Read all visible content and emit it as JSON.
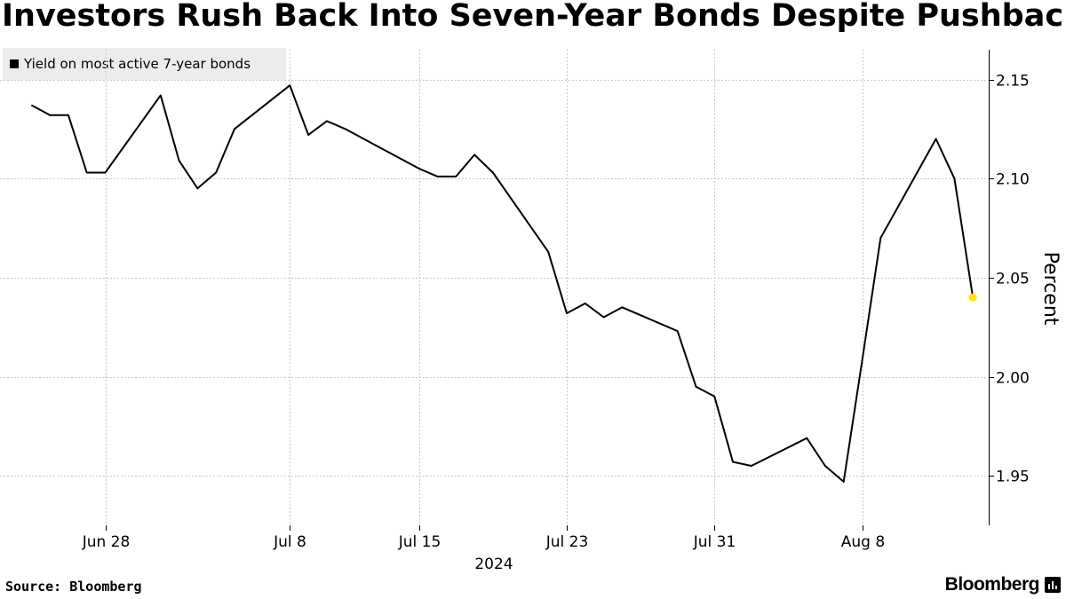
{
  "title": "Investors Rush Back Into Seven-Year Bonds Despite Pushback",
  "source": "Source:  Bloomberg",
  "brand": "Bloomberg",
  "chart_data": {
    "type": "line",
    "ylabel": "Percent",
    "xlabel": "2024",
    "ylim": [
      1.925,
      2.165
    ],
    "y_ticks": [
      1.95,
      2.0,
      2.05,
      2.1,
      2.15
    ],
    "y_tick_labels": [
      "1.95",
      "2.00",
      "2.05",
      "2.10",
      "2.15"
    ],
    "x_ticks": [
      {
        "label": "Jun 28",
        "date": "2024-06-28"
      },
      {
        "label": "Jul 8",
        "date": "2024-07-08"
      },
      {
        "label": "Jul 15",
        "date": "2024-07-15"
      },
      {
        "label": "Jul 23",
        "date": "2024-07-23"
      },
      {
        "label": "Jul 31",
        "date": "2024-07-31"
      },
      {
        "label": "Aug 8",
        "date": "2024-08-08"
      }
    ],
    "grid": true,
    "legend_position": "top-left",
    "colors": {
      "line": "#000000",
      "last_point": "#ffe600",
      "grid": "#c8c8c8"
    },
    "series": [
      {
        "name": "Yield on most active 7-year bonds",
        "points": [
          {
            "date": "2024-06-24",
            "value": 2.137
          },
          {
            "date": "2024-06-25",
            "value": 2.132
          },
          {
            "date": "2024-06-26",
            "value": 2.132
          },
          {
            "date": "2024-06-27",
            "value": 2.103
          },
          {
            "date": "2024-06-28",
            "value": 2.103
          },
          {
            "date": "2024-07-01",
            "value": 2.142
          },
          {
            "date": "2024-07-02",
            "value": 2.109
          },
          {
            "date": "2024-07-03",
            "value": 2.095
          },
          {
            "date": "2024-07-04",
            "value": 2.103
          },
          {
            "date": "2024-07-05",
            "value": 2.125
          },
          {
            "date": "2024-07-08",
            "value": 2.147
          },
          {
            "date": "2024-07-09",
            "value": 2.122
          },
          {
            "date": "2024-07-10",
            "value": 2.129
          },
          {
            "date": "2024-07-11",
            "value": 2.125
          },
          {
            "date": "2024-07-12",
            "value": 2.12
          },
          {
            "date": "2024-07-15",
            "value": 2.105
          },
          {
            "date": "2024-07-16",
            "value": 2.101
          },
          {
            "date": "2024-07-17",
            "value": 2.101
          },
          {
            "date": "2024-07-18",
            "value": 2.112
          },
          {
            "date": "2024-07-19",
            "value": 2.103
          },
          {
            "date": "2024-07-22",
            "value": 2.063
          },
          {
            "date": "2024-07-23",
            "value": 2.032
          },
          {
            "date": "2024-07-24",
            "value": 2.037
          },
          {
            "date": "2024-07-25",
            "value": 2.03
          },
          {
            "date": "2024-07-26",
            "value": 2.035
          },
          {
            "date": "2024-07-29",
            "value": 2.023
          },
          {
            "date": "2024-07-30",
            "value": 1.995
          },
          {
            "date": "2024-07-31",
            "value": 1.99
          },
          {
            "date": "2024-08-01",
            "value": 1.957
          },
          {
            "date": "2024-08-02",
            "value": 1.955
          },
          {
            "date": "2024-08-05",
            "value": 1.969
          },
          {
            "date": "2024-08-06",
            "value": 1.955
          },
          {
            "date": "2024-08-07",
            "value": 1.947
          },
          {
            "date": "2024-08-08",
            "value": 2.008
          },
          {
            "date": "2024-08-09",
            "value": 2.07
          },
          {
            "date": "2024-08-12",
            "value": 2.12
          },
          {
            "date": "2024-08-13",
            "value": 2.1
          },
          {
            "date": "2024-08-14",
            "value": 2.04
          }
        ]
      }
    ]
  }
}
